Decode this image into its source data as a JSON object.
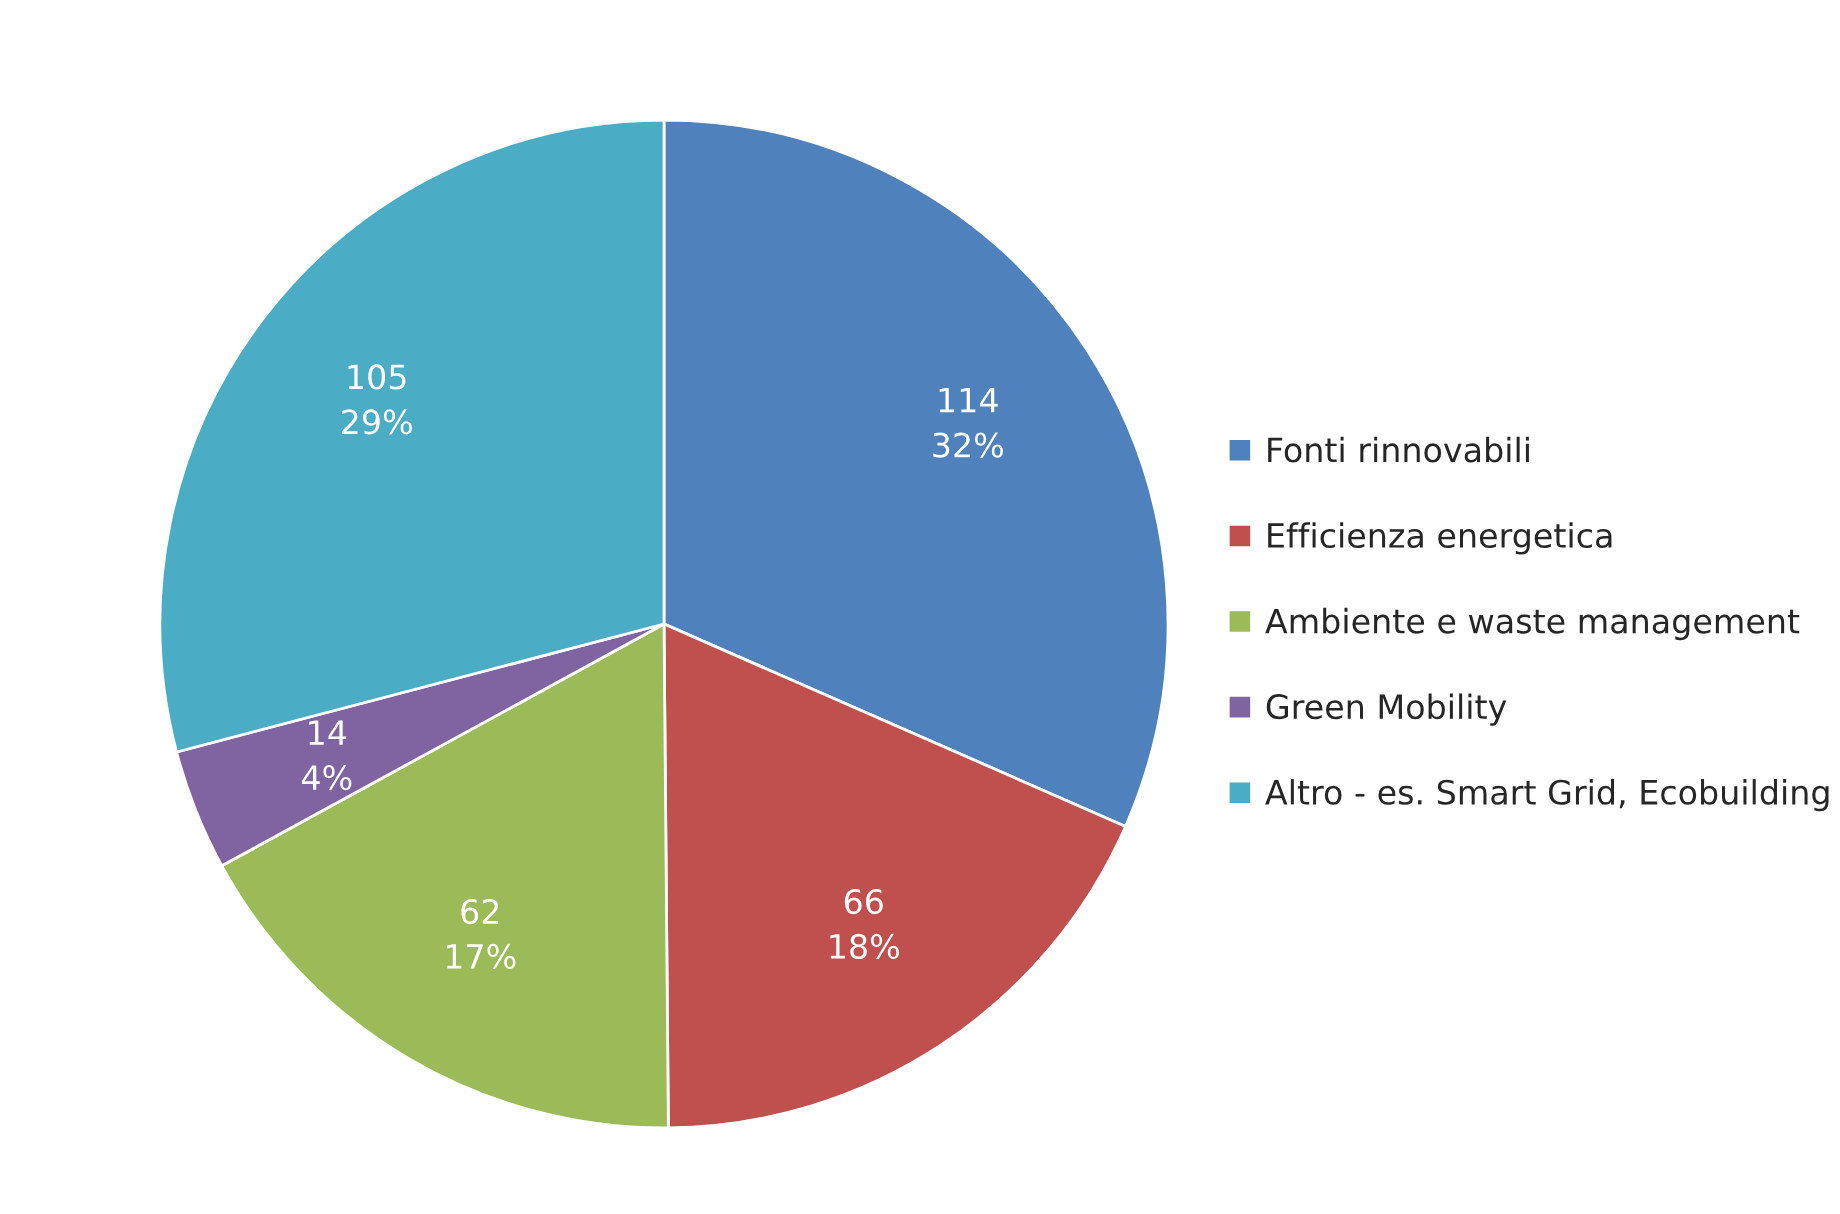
{
  "chart_data": {
    "type": "pie",
    "categories": [
      "Fonti rinnovabili",
      "Efficienza energetica",
      "Ambiente e waste management",
      "Green Mobility",
      "Altro - es. Smart Grid, Ecobuilding"
    ],
    "values": [
      114,
      66,
      62,
      14,
      105
    ],
    "value_labels": [
      "114\n32%",
      "66\n18%",
      "62\n17%",
      "14\n4%",
      "105\n29%"
    ],
    "colors": [
      "#4f81bd",
      "#c0504d",
      "#9bbb59",
      "#8064a2",
      "#4bacc6"
    ],
    "legend": "right"
  }
}
